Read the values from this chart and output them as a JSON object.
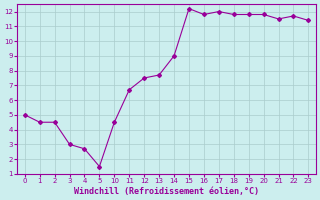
{
  "y": [
    5.0,
    4.5,
    4.5,
    3.0,
    2.7,
    1.5,
    4.5,
    6.7,
    7.5,
    7.7,
    9.0,
    12.2,
    11.8,
    12.0,
    11.8,
    11.8,
    11.8,
    11.5,
    11.7,
    11.4
  ],
  "xtick_labels": [
    "0",
    "1",
    "2",
    "3",
    "4",
    "5",
    "10",
    "11",
    "12",
    "13",
    "14",
    "15",
    "16",
    "17",
    "18",
    "19",
    "20",
    "21",
    "22",
    "23"
  ],
  "line_color": "#990099",
  "marker": "D",
  "marker_size": 2,
  "bg_color": "#cceeee",
  "grid_color": "#aacccc",
  "xlabel": "Windchill (Refroidissement éolien,°C)",
  "xlabel_color": "#990099",
  "ylim": [
    1,
    12.5
  ],
  "yticks": [
    1,
    2,
    3,
    4,
    5,
    6,
    7,
    8,
    9,
    10,
    11,
    12
  ],
  "tick_color": "#990099",
  "spine_color": "#990099",
  "tick_fontsize": 5,
  "xlabel_fontsize": 6
}
